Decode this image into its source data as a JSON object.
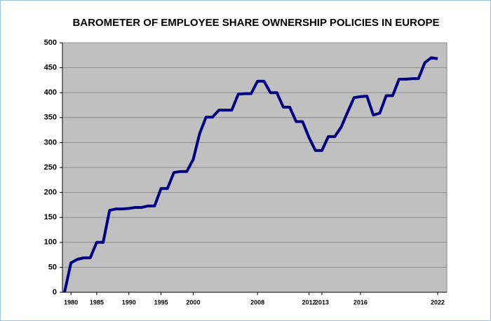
{
  "chart_data": {
    "type": "line",
    "title": "BAROMETER OF EMPLOYEE SHARE OWNERSHIP POLICIES IN EUROPE",
    "categories": [
      null,
      "1980",
      null,
      null,
      null,
      "1985",
      null,
      null,
      null,
      null,
      "1990",
      null,
      null,
      null,
      null,
      "1995",
      null,
      null,
      null,
      null,
      "2000",
      null,
      null,
      null,
      null,
      null,
      null,
      null,
      null,
      null,
      "2008",
      null,
      null,
      null,
      null,
      null,
      null,
      null,
      "2012",
      null,
      "2013",
      null,
      null,
      null,
      null,
      null,
      "2016",
      null,
      null,
      null,
      null,
      null,
      null,
      null,
      null,
      null,
      null,
      null,
      "2022"
    ],
    "values": [
      0,
      59,
      66,
      69,
      69,
      100,
      100,
      164,
      167,
      167,
      168,
      170,
      170,
      173,
      173,
      208,
      208,
      240,
      242,
      242,
      266,
      318,
      351,
      351,
      365,
      365,
      365,
      397,
      398,
      398,
      423,
      423,
      400,
      400,
      371,
      371,
      342,
      342,
      310,
      284,
      284,
      312,
      312,
      331,
      361,
      390,
      392,
      393,
      355,
      359,
      394,
      394,
      427,
      427,
      428,
      428,
      460,
      470,
      468
    ],
    "color": "#000080",
    "ylim": [
      0,
      500
    ],
    "yticks": [
      0,
      50,
      100,
      150,
      200,
      250,
      300,
      350,
      400,
      450,
      500
    ],
    "grid": true
  }
}
